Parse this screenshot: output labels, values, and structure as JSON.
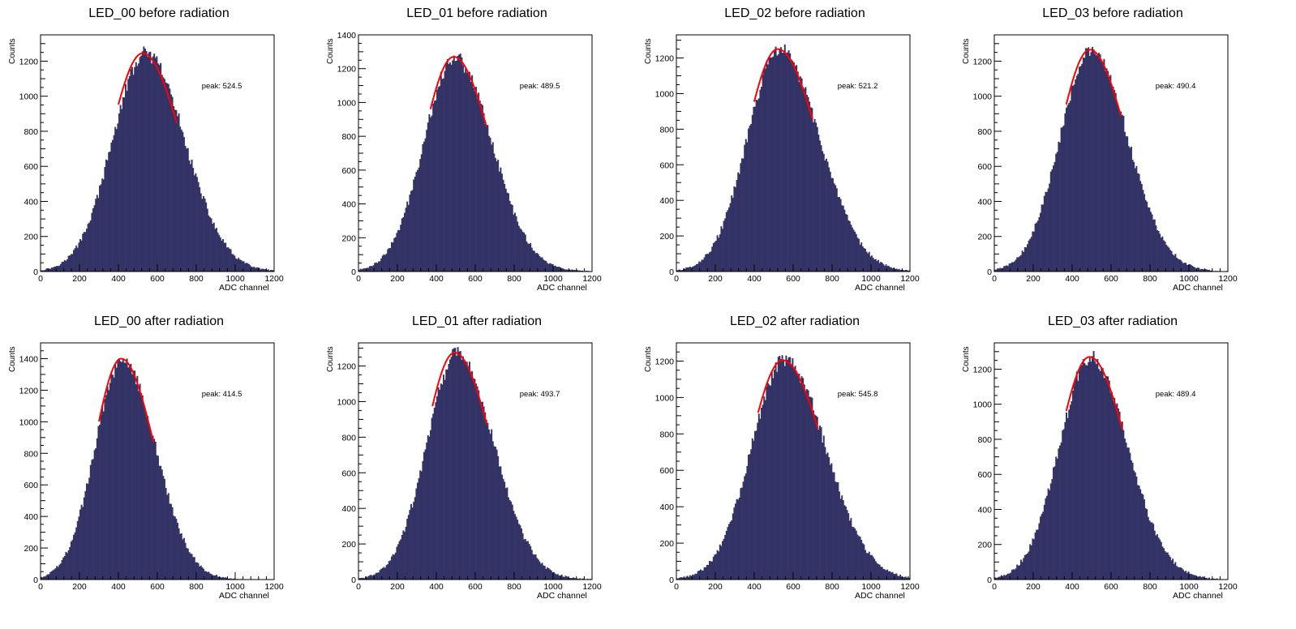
{
  "colors": {
    "fill": "#333366",
    "fit": "#ff0000",
    "axis": "#000000"
  },
  "chart_data": [
    {
      "type": "bar",
      "title": "LED_00 before radiation",
      "xlabel": "ADC channel",
      "ylabel": "Counts",
      "xlim": [
        0,
        1200
      ],
      "ylim": [
        0,
        1350
      ],
      "xticks": [
        0,
        200,
        400,
        600,
        800,
        1000,
        1200
      ],
      "yticks": [
        0,
        200,
        400,
        600,
        800,
        1000,
        1200
      ],
      "dist": {
        "mean": 540,
        "sigma_left": 170,
        "sigma_right": 200,
        "amplitude": 1240
      },
      "fit": {
        "peak": 524.5,
        "range": [
          400,
          700
        ],
        "height": 1245
      },
      "peak_text": "peak: 524.5"
    },
    {
      "type": "bar",
      "title": "LED_01 before radiation",
      "xlabel": "ADC channel",
      "ylabel": "Counts",
      "xlim": [
        0,
        1200
      ],
      "ylim": [
        0,
        1400
      ],
      "xticks": [
        0,
        200,
        400,
        600,
        800,
        1000,
        1200
      ],
      "yticks": [
        0,
        200,
        400,
        600,
        800,
        1000,
        1200,
        1400
      ],
      "dist": {
        "mean": 495,
        "sigma_left": 160,
        "sigma_right": 190,
        "amplitude": 1265
      },
      "fit": {
        "peak": 489.5,
        "range": [
          370,
          660
        ],
        "height": 1270
      },
      "peak_text": "peak: 489.5"
    },
    {
      "type": "bar",
      "title": "LED_02 before radiation",
      "xlabel": "ADC channel",
      "ylabel": "Counts",
      "xlim": [
        0,
        1200
      ],
      "ylim": [
        0,
        1330
      ],
      "xticks": [
        0,
        200,
        400,
        600,
        800,
        1000,
        1200
      ],
      "yticks": [
        0,
        200,
        400,
        600,
        800,
        1000,
        1200
      ],
      "dist": {
        "mean": 530,
        "sigma_left": 165,
        "sigma_right": 205,
        "amplitude": 1245
      },
      "fit": {
        "peak": 521.2,
        "range": [
          400,
          700
        ],
        "height": 1250
      },
      "peak_text": "peak: 521.2"
    },
    {
      "type": "bar",
      "title": "LED_03 before radiation",
      "xlabel": "ADC channel",
      "ylabel": "Counts",
      "xlim": [
        0,
        1200
      ],
      "ylim": [
        0,
        1350
      ],
      "xticks": [
        0,
        200,
        400,
        600,
        800,
        1000,
        1200
      ],
      "yticks": [
        0,
        200,
        400,
        600,
        800,
        1000,
        1200
      ],
      "dist": {
        "mean": 495,
        "sigma_left": 160,
        "sigma_right": 190,
        "amplitude": 1255
      },
      "fit": {
        "peak": 490.4,
        "range": [
          370,
          650
        ],
        "height": 1265
      },
      "peak_text": "peak: 490.4"
    },
    {
      "type": "bar",
      "title": "LED_00 after radiation",
      "xlabel": "ADC channel",
      "ylabel": "Counts",
      "xlim": [
        0,
        1200
      ],
      "ylim": [
        0,
        1500
      ],
      "xticks": [
        0,
        200,
        400,
        600,
        800,
        1000,
        1200
      ],
      "yticks": [
        0,
        200,
        400,
        600,
        800,
        1000,
        1200,
        1400
      ],
      "dist": {
        "mean": 420,
        "sigma_left": 140,
        "sigma_right": 170,
        "amplitude": 1395
      },
      "fit": {
        "peak": 414.5,
        "range": [
          300,
          580
        ],
        "height": 1400
      },
      "peak_text": "peak: 414.5"
    },
    {
      "type": "bar",
      "title": "LED_01 after radiation",
      "xlabel": "ADC channel",
      "ylabel": "Counts",
      "xlim": [
        0,
        1200
      ],
      "ylim": [
        0,
        1330
      ],
      "xticks": [
        0,
        200,
        400,
        600,
        800,
        1000,
        1200
      ],
      "yticks": [
        0,
        200,
        400,
        600,
        800,
        1000,
        1200
      ],
      "dist": {
        "mean": 505,
        "sigma_left": 155,
        "sigma_right": 190,
        "amplitude": 1265
      },
      "fit": {
        "peak": 493.7,
        "range": [
          380,
          660
        ],
        "height": 1275
      },
      "peak_text": "peak: 493.7"
    },
    {
      "type": "bar",
      "title": "LED_02 after radiation",
      "xlabel": "ADC channel",
      "ylabel": "Counts",
      "xlim": [
        0,
        1200
      ],
      "ylim": [
        0,
        1300
      ],
      "xticks": [
        0,
        200,
        400,
        600,
        800,
        1000,
        1200
      ],
      "yticks": [
        0,
        200,
        400,
        600,
        800,
        1000,
        1200
      ],
      "dist": {
        "mean": 555,
        "sigma_left": 170,
        "sigma_right": 210,
        "amplitude": 1205
      },
      "fit": {
        "peak": 545.8,
        "range": [
          420,
          730
        ],
        "height": 1205
      },
      "peak_text": "peak: 545.8"
    },
    {
      "type": "bar",
      "title": "LED_03 after radiation",
      "xlabel": "ADC channel",
      "ylabel": "Counts",
      "xlim": [
        0,
        1200
      ],
      "ylim": [
        0,
        1350
      ],
      "xticks": [
        0,
        200,
        400,
        600,
        800,
        1000,
        1200
      ],
      "yticks": [
        0,
        200,
        400,
        600,
        800,
        1000,
        1200
      ],
      "dist": {
        "mean": 495,
        "sigma_left": 160,
        "sigma_right": 190,
        "amplitude": 1265
      },
      "fit": {
        "peak": 489.4,
        "range": [
          370,
          660
        ],
        "height": 1270
      },
      "peak_text": "peak: 489.4"
    }
  ]
}
